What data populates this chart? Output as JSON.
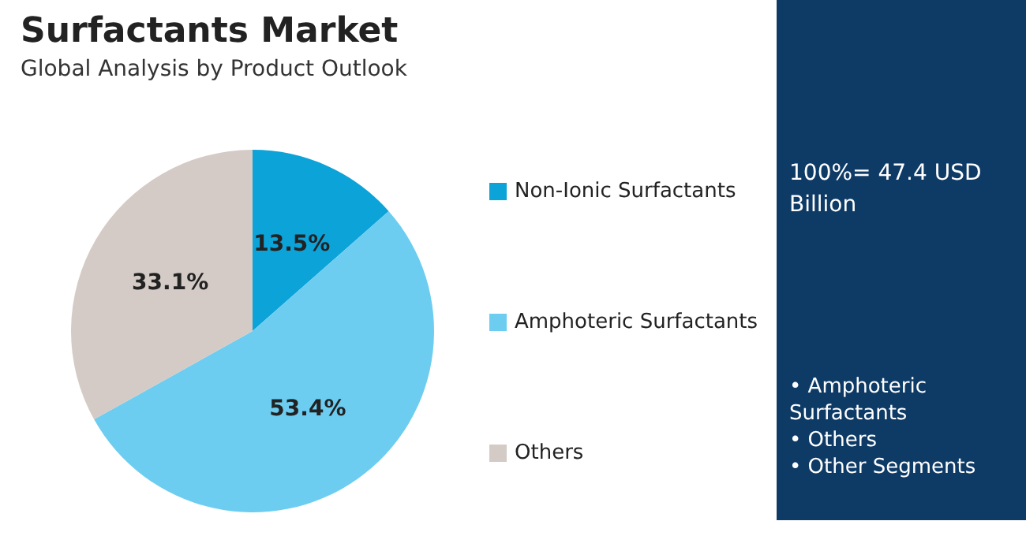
{
  "chart_data": {
    "type": "pie",
    "title": "Surfactants Market",
    "subtitle": "Global Analysis by Product Outlook",
    "categories": [
      "Non-Ionic Surfactants",
      "Amphoteric Surfactants",
      "Others"
    ],
    "values": [
      13.5,
      53.4,
      33.1
    ],
    "colors": [
      "#0ca3d9",
      "#6ccdf1",
      "#d4cbc6"
    ],
    "value_labels": [
      "13.5%",
      "53.4%",
      "33.1%"
    ],
    "legend": "right",
    "annotations": [
      "100%= 47.4 USD Billion",
      "• Amphoteric Surfactants",
      "• Others",
      "• Other Segments"
    ]
  }
}
